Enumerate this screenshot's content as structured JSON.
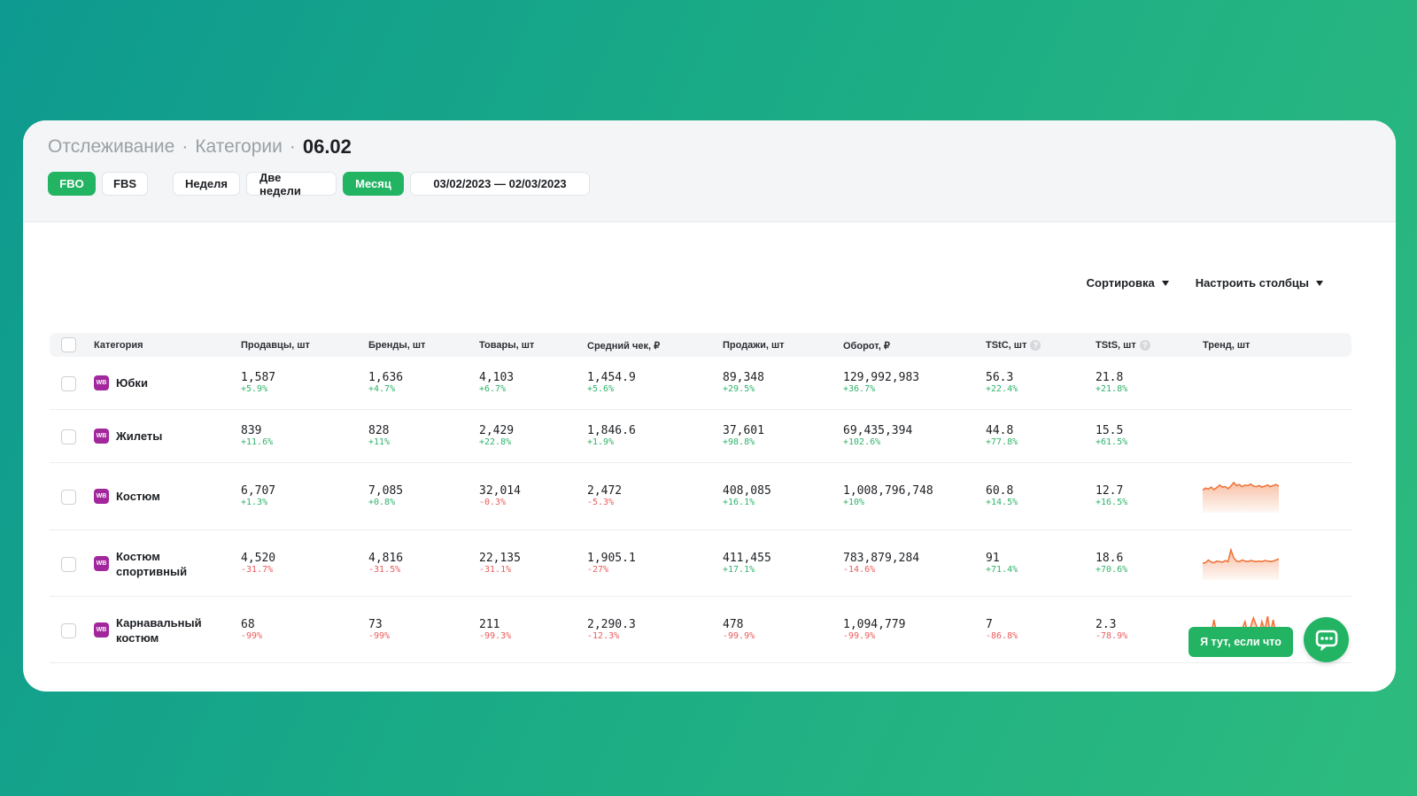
{
  "header": {
    "breadcrumb": [
      "Отслеживание",
      "Категории"
    ],
    "separator": "·",
    "current": "06.02"
  },
  "filters": {
    "mode_buttons": [
      "FBO",
      "FBS"
    ],
    "period_buttons": [
      "Неделя",
      "Две недели",
      "Месяц"
    ],
    "date_range": "03/02/2023 — 02/03/2023",
    "active_mode": "FBO",
    "active_period": "Месяц"
  },
  "toolbar": {
    "sort_label": "Сортировка",
    "columns_label": "Настроить столбцы"
  },
  "table": {
    "columns": [
      "Категория",
      "Продавцы, шт",
      "Бренды, шт",
      "Товары, шт",
      "Средний чек, ₽",
      "Продажи, шт",
      "Оборот, ₽",
      "TStC, шт",
      "TStS, шт",
      "Тренд, шт"
    ],
    "badge": "WB",
    "rows": [
      {
        "category": [
          "Юбки"
        ],
        "cells": [
          [
            "1,587",
            "+5.9%"
          ],
          [
            "1,636",
            "+4.7%"
          ],
          [
            "4,103",
            "+6.7%"
          ],
          [
            "1,454.9",
            "+5.6%"
          ],
          [
            "89,348",
            "+29.5%"
          ],
          [
            "129,992,983",
            "+36.7%"
          ],
          [
            "56.3",
            "+22.4%"
          ],
          [
            "21.8",
            "+21.8%"
          ]
        ],
        "trend": []
      },
      {
        "category": [
          "Жилеты"
        ],
        "cells": [
          [
            "839",
            "+11.6%"
          ],
          [
            "828",
            "+11%"
          ],
          [
            "2,429",
            "+22.8%"
          ],
          [
            "1,846.6",
            "+1.9%"
          ],
          [
            "37,601",
            "+98.8%"
          ],
          [
            "69,435,394",
            "+102.6%"
          ],
          [
            "44.8",
            "+77.8%"
          ],
          [
            "15.5",
            "+61.5%"
          ]
        ],
        "trend": []
      },
      {
        "category": [
          "Костюм"
        ],
        "cells": [
          [
            "6,707",
            "+1.3%"
          ],
          [
            "7,085",
            "+0.8%"
          ],
          [
            "32,014",
            "-0.3%"
          ],
          [
            "2,472",
            "-5.3%"
          ],
          [
            "408,085",
            "+16.1%"
          ],
          [
            "1,008,796,748",
            "+10%"
          ],
          [
            "60.8",
            "+14.5%"
          ],
          [
            "12.7",
            "+16.5%"
          ]
        ],
        "trend": [
          20,
          24,
          22,
          26,
          21,
          25,
          30,
          26,
          27,
          23,
          28,
          35,
          29,
          31,
          27,
          30,
          29,
          32,
          28,
          27,
          29,
          26,
          28,
          30,
          27,
          29,
          31,
          28
        ]
      },
      {
        "category": [
          "Костюм",
          "спортивный"
        ],
        "cells": [
          [
            "4,520",
            "-31.7%"
          ],
          [
            "4,816",
            "-31.5%"
          ],
          [
            "22,135",
            "-31.1%"
          ],
          [
            "1,905.1",
            "-27%"
          ],
          [
            "411,455",
            "+17.1%"
          ],
          [
            "783,879,284",
            "-14.6%"
          ],
          [
            "91",
            "+71.4%"
          ],
          [
            "18.6",
            "+70.6%"
          ]
        ],
        "trend": [
          8,
          9,
          14,
          10,
          9,
          12,
          11,
          10,
          13,
          11,
          33,
          18,
          12,
          11,
          14,
          12,
          11,
          13,
          12,
          11,
          12,
          11,
          13,
          12,
          11,
          12,
          14,
          16
        ]
      },
      {
        "category": [
          "Карнавальный",
          "костюм"
        ],
        "cells": [
          [
            "68",
            "-99%"
          ],
          [
            "73",
            "-99%"
          ],
          [
            "211",
            "-99.3%"
          ],
          [
            "2,290.3",
            "-12.3%"
          ],
          [
            "478",
            "-99.9%"
          ],
          [
            "1,094,779",
            "-99.9%"
          ],
          [
            "7",
            "-86.8%"
          ],
          [
            "2.3",
            "-78.9%"
          ]
        ],
        "trend": [
          0,
          0,
          0,
          0,
          16,
          0,
          0,
          0,
          0,
          0,
          0,
          0,
          0,
          0,
          6,
          14,
          0,
          8,
          18,
          10,
          0,
          14,
          4,
          20,
          0,
          16,
          0,
          2
        ]
      }
    ]
  },
  "chat": {
    "label": "Я тут, если что"
  },
  "colors": {
    "accent": "#22b463",
    "positive": "#2fb36b",
    "negative": "#ec5b5b",
    "badge": "#a2269c",
    "trend_line": "#f0743a"
  }
}
